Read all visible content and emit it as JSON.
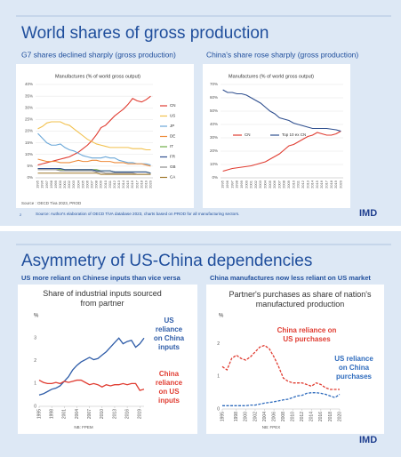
{
  "slides": [
    {
      "title": "World shares of gross production",
      "subtitles": [
        "G7 shares declined sharply (gross production)",
        "China's share rose sharply (gross production)"
      ],
      "source": "Source: Author's elaboration of OECD  TiVA database 2023, charts based on PROD for all manufacturing sectors.",
      "page": "2",
      "logo": "IMD"
    },
    {
      "title": "Asymmetry of  US-China dependencies",
      "subtitles": [
        "US more reliant on Chinese inputs than vice versa",
        "China manufactures now less reliant on US market"
      ],
      "logo": "IMD"
    }
  ],
  "chart_data": [
    {
      "type": "line",
      "title": "Manufactures (% of world gross output)",
      "note": "Source : OECD Tiva 2023, PROD",
      "grid": true,
      "legend": "right",
      "categories": [
        "1995",
        "1996",
        "1997",
        "1998",
        "1999",
        "2000",
        "2001",
        "2002",
        "2003",
        "2004",
        "2005",
        "2006",
        "2007",
        "2008",
        "2009",
        "2010",
        "2011",
        "2012",
        "2013",
        "2014",
        "2015",
        "2016",
        "2017",
        "2018",
        "2019",
        "2020"
      ],
      "ylim": [
        0,
        40
      ],
      "yticks": [
        {
          "value": 0,
          "label": "0%"
        },
        {
          "value": 5,
          "label": "5%"
        },
        {
          "value": 10,
          "label": "10%"
        },
        {
          "value": 15,
          "label": "15%"
        },
        {
          "value": 20,
          "label": "20%"
        },
        {
          "value": 25,
          "label": "25%"
        },
        {
          "value": 30,
          "label": "30%"
        },
        {
          "value": 35,
          "label": "35%"
        },
        {
          "value": 40,
          "label": "40%"
        }
      ],
      "series": [
        {
          "name": "CN",
          "color": "#e03c31",
          "values": [
            5.5,
            6,
            6.5,
            7,
            7.5,
            8,
            8.5,
            9,
            10,
            11,
            12.5,
            14,
            16,
            18.5,
            21.5,
            22.5,
            24.5,
            26.5,
            28,
            29.5,
            31.5,
            34,
            33,
            32.5,
            33.5,
            35
          ]
        },
        {
          "name": "US",
          "color": "#f2c14e",
          "values": [
            21,
            22,
            23.5,
            24,
            24,
            24,
            23,
            22.5,
            21,
            19.5,
            18,
            16.5,
            15.5,
            14.5,
            14,
            13.5,
            13,
            13,
            13,
            13,
            13,
            12.5,
            12.5,
            12.5,
            12,
            12
          ]
        },
        {
          "name": "JP",
          "color": "#6aa7d8",
          "values": [
            19,
            17,
            15,
            14,
            14,
            14.5,
            13,
            12,
            11.5,
            10.5,
            9.5,
            9,
            8.5,
            8.5,
            8.5,
            9,
            8.5,
            8.5,
            7.5,
            7,
            6.5,
            6.5,
            6,
            6,
            6,
            5.5
          ]
        },
        {
          "name": "DE",
          "color": "#ee8c3c",
          "values": [
            8,
            7.5,
            7,
            7,
            7,
            6.5,
            6.5,
            6.5,
            7,
            7.5,
            7,
            7,
            7.5,
            7.5,
            7,
            7,
            7,
            6.5,
            6.5,
            6.5,
            6,
            6,
            6,
            6,
            5.5,
            5
          ]
        },
        {
          "name": "IT",
          "color": "#6fae45",
          "values": [
            4,
            4,
            4,
            4,
            4,
            3.5,
            3.5,
            3.5,
            3.5,
            3.5,
            3.5,
            3.5,
            3.5,
            3.5,
            3,
            3,
            3,
            2.5,
            2.5,
            2.5,
            2.5,
            2.5,
            2.5,
            2.5,
            2.5,
            2
          ]
        },
        {
          "name": "FR",
          "color": "#2f4f8f",
          "values": [
            4,
            4,
            4,
            4,
            4,
            4,
            3.5,
            3.5,
            3.5,
            3.5,
            3.5,
            3.5,
            3.5,
            3,
            3,
            3,
            3,
            2.5,
            2.5,
            2.5,
            2.5,
            2.5,
            2.5,
            2.5,
            2.5,
            2
          ]
        },
        {
          "name": "GB",
          "color": "#8c8c8c",
          "values": [
            3.5,
            3.5,
            3.5,
            3.5,
            3.5,
            3,
            3,
            3,
            3,
            3,
            3,
            3,
            3,
            2.5,
            2.5,
            2,
            2,
            2,
            2,
            2,
            2,
            2,
            1.5,
            1.5,
            1.5,
            1.5
          ]
        },
        {
          "name": "CA",
          "color": "#a0782c",
          "values": [
            2,
            2,
            2,
            2,
            2,
            2,
            2,
            2,
            2,
            2,
            2,
            2,
            2,
            2,
            1.5,
            1.5,
            1.5,
            1.5,
            1.5,
            1.5,
            1.5,
            1.5,
            1.5,
            1.5,
            1.5,
            1.5
          ]
        }
      ]
    },
    {
      "type": "line",
      "title": "Manufactures (% of world gross output)",
      "grid": true,
      "legend": "inside",
      "categories": [
        "1995",
        "1996",
        "1997",
        "1998",
        "1999",
        "2000",
        "2001",
        "2002",
        "2003",
        "2004",
        "2005",
        "2006",
        "2007",
        "2008",
        "2009",
        "2010",
        "2011",
        "2012",
        "2013",
        "2014",
        "2015",
        "2016",
        "2017",
        "2018",
        "2019",
        "2020"
      ],
      "ylim": [
        0,
        70
      ],
      "yticks": [
        {
          "value": 0,
          "label": "0%"
        },
        {
          "value": 10,
          "label": "10%"
        },
        {
          "value": 20,
          "label": "20%"
        },
        {
          "value": 30,
          "label": "30%"
        },
        {
          "value": 40,
          "label": "40%"
        },
        {
          "value": 50,
          "label": "50%"
        },
        {
          "value": 60,
          "label": "60%"
        },
        {
          "value": 70,
          "label": "70%"
        }
      ],
      "series": [
        {
          "name": "CN",
          "color": "#e03c31",
          "values": [
            5,
            6,
            7,
            7.5,
            8,
            8.5,
            9,
            10,
            11,
            12,
            14,
            16,
            18,
            21,
            24,
            25,
            27,
            29,
            31,
            32,
            34,
            33,
            32,
            32,
            33,
            35
          ]
        },
        {
          "name": "Top 10 ex CN",
          "color": "#2f4f8f",
          "values": [
            66,
            64,
            64,
            63,
            63,
            62,
            60,
            58,
            56,
            53,
            50,
            48,
            45,
            44,
            43,
            41,
            40,
            39,
            38,
            37,
            37,
            37,
            37,
            36.5,
            36,
            35
          ]
        }
      ]
    },
    {
      "type": "line",
      "title": "Share of industrial inputs sourced from partner",
      "ylabel": "%",
      "note": "NB: FPEM",
      "grid": false,
      "x": [
        1995,
        1996,
        1997,
        1998,
        1999,
        2000,
        2001,
        2002,
        2003,
        2004,
        2005,
        2006,
        2007,
        2008,
        2009,
        2010,
        2011,
        2012,
        2013,
        2014,
        2015,
        2016,
        2017,
        2018,
        2019,
        2020
      ],
      "xlim": [
        1995,
        2020
      ],
      "xticks": [
        1995,
        1998,
        2001,
        2004,
        2007,
        2010,
        2013,
        2016,
        2019
      ],
      "ylim": [
        0,
        3.4
      ],
      "yticks": [
        0,
        1,
        2,
        3
      ],
      "series": [
        {
          "color": "#2e5ca8",
          "values": [
            0.5,
            0.55,
            0.65,
            0.75,
            0.8,
            0.9,
            1.1,
            1.3,
            1.6,
            1.8,
            1.95,
            2.05,
            2.15,
            2.05,
            2.1,
            2.25,
            2.4,
            2.6,
            2.8,
            3,
            2.75,
            2.85,
            2.9,
            2.6,
            2.75,
            3
          ]
        },
        {
          "color": "#e03c31",
          "values": [
            1.15,
            1.05,
            1,
            1,
            1.05,
            1,
            1.1,
            1.05,
            1.1,
            1.15,
            1.15,
            1.05,
            0.95,
            1,
            0.95,
            0.85,
            0.95,
            0.9,
            0.95,
            0.95,
            1,
            0.95,
            1,
            1,
            0.7,
            0.75
          ]
        }
      ],
      "annotations": [
        {
          "lines": [
            "US",
            "reliance",
            "on China",
            "inputs"
          ],
          "color": "#2e5ca8"
        },
        {
          "lines": [
            "China",
            "reliance",
            "on US",
            "inputs"
          ],
          "color": "#e03c31"
        }
      ]
    },
    {
      "type": "line",
      "title": "Partner's purchases as share of nation's manufactured production",
      "ylabel": "%",
      "note": "NB: FPEX",
      "grid": false,
      "dashed": true,
      "x": [
        1995,
        1996,
        1997,
        1998,
        1999,
        2000,
        2001,
        2002,
        2003,
        2004,
        2005,
        2006,
        2007,
        2008,
        2009,
        2010,
        2011,
        2012,
        2013,
        2014,
        2015,
        2016,
        2017,
        2018,
        2019,
        2020
      ],
      "xlim": [
        1995,
        2020
      ],
      "xticks": [
        1995,
        1998,
        2000,
        2002,
        2004,
        2006,
        2008,
        2010,
        2012,
        2014,
        2016,
        2018,
        2020
      ],
      "ylim": [
        0,
        2.4
      ],
      "yticks": [
        0,
        1,
        2
      ],
      "series": [
        {
          "color": "#e03c31",
          "values": [
            1.3,
            1.2,
            1.55,
            1.65,
            1.55,
            1.5,
            1.6,
            1.75,
            1.9,
            1.95,
            1.85,
            1.6,
            1.3,
            0.95,
            0.85,
            0.8,
            0.8,
            0.8,
            0.75,
            0.7,
            0.8,
            0.75,
            0.65,
            0.6,
            0.6,
            0.6
          ]
        },
        {
          "color": "#2e6bbd",
          "values": [
            0.1,
            0.1,
            0.1,
            0.1,
            0.1,
            0.1,
            0.12,
            0.12,
            0.15,
            0.18,
            0.2,
            0.22,
            0.25,
            0.28,
            0.3,
            0.35,
            0.4,
            0.42,
            0.48,
            0.5,
            0.5,
            0.48,
            0.45,
            0.4,
            0.35,
            0.45
          ]
        }
      ],
      "annotations": [
        {
          "lines": [
            "China reliance on",
            "US purchases"
          ],
          "color": "#e03c31"
        },
        {
          "lines": [
            "US reliance",
            "on China",
            "purchases"
          ],
          "color": "#2e6bbd"
        }
      ]
    }
  ]
}
